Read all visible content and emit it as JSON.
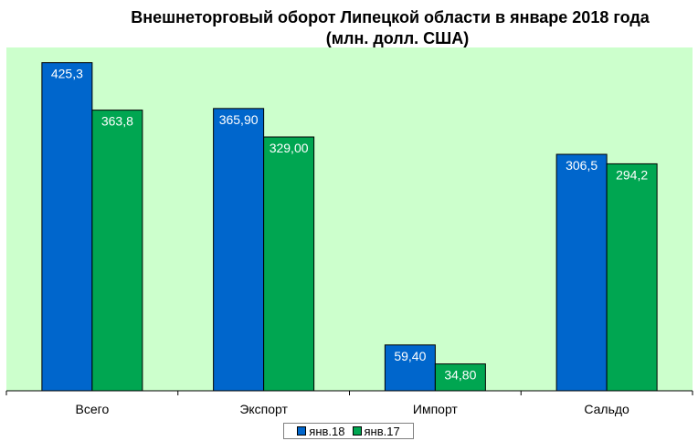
{
  "chart_data": {
    "type": "bar",
    "title_line1": "Внешнеторговый оборот Липецкой области в январе 2018 года",
    "title_line2": "(млн. долл. США)",
    "categories": [
      "Всего",
      "Экспорт",
      "Импорт",
      "Сальдо"
    ],
    "series": [
      {
        "name": "янв.18",
        "color": "#0066cc",
        "values": [
          425.3,
          365.9,
          59.4,
          306.5
        ],
        "labels": [
          "425,3",
          "365,90",
          "59,40",
          "306,5"
        ]
      },
      {
        "name": "янв.17",
        "color": "#00a651",
        "values": [
          363.8,
          329.0,
          34.8,
          294.2
        ],
        "labels": [
          "363,8",
          "329,00",
          "34,80",
          "294,2"
        ]
      }
    ],
    "ylim": [
      0,
      445
    ],
    "plot_background": "#ccffcc",
    "grid": false,
    "legend_position": "bottom"
  }
}
